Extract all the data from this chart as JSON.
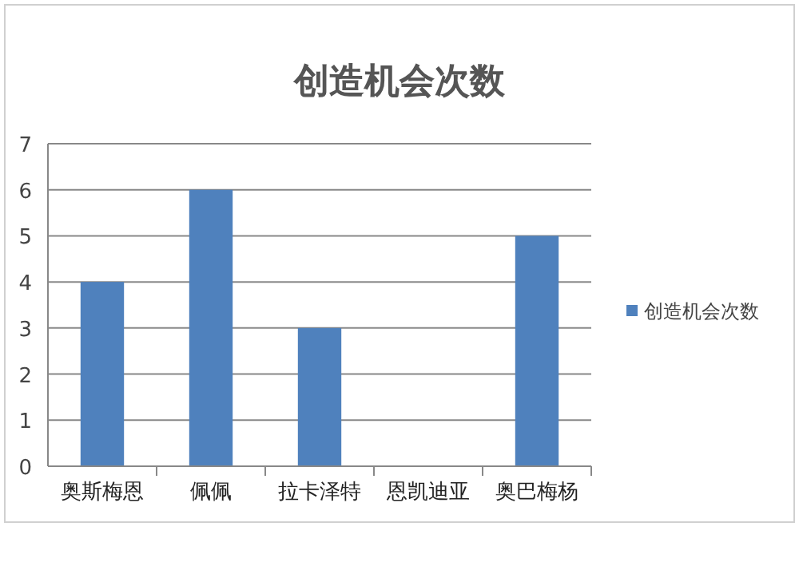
{
  "chart_data": {
    "type": "bar",
    "title": "创造机会次数",
    "categories": [
      "奥斯梅恩",
      "佩佩",
      "拉卡泽特",
      "恩凯迪亚",
      "奥巴梅杨"
    ],
    "series": [
      {
        "name": "创造机会次数",
        "color": "#4f81bd",
        "values": [
          4,
          6,
          3,
          0,
          5
        ]
      }
    ],
    "ylim": [
      0,
      7
    ],
    "yticks": [
      0,
      1,
      2,
      3,
      4,
      5,
      6,
      7
    ],
    "grid": "y",
    "legend": "right"
  }
}
